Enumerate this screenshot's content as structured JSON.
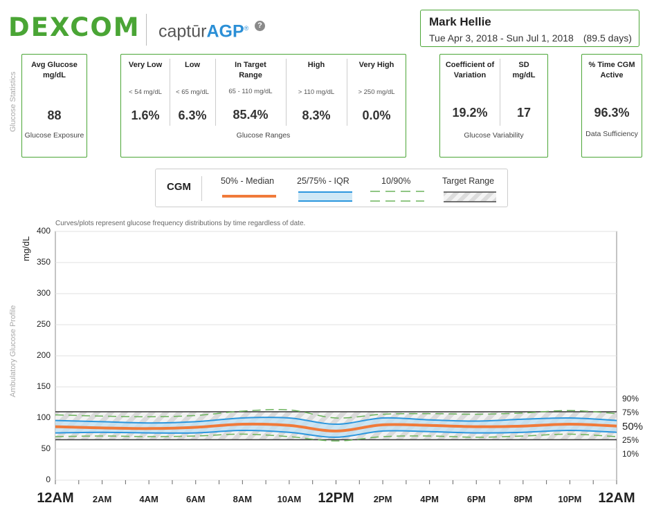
{
  "header": {
    "brand": "DEXCOM",
    "product_prefix": "captūr",
    "product_suffix": "AGP",
    "registered": "®",
    "help_icon": "?",
    "patient_name": "Mark Hellie",
    "date_range": "Tue Apr 3, 2018 - Sun Jul 1, 2018",
    "days": "(89.5 days)"
  },
  "stats": {
    "section_label": "Glucose Statistics",
    "avg": {
      "title": "Avg Glucose mg/dL",
      "value": "88",
      "caption": "Glucose Exposure"
    },
    "ranges": {
      "caption": "Glucose Ranges",
      "items": [
        {
          "title": "Very Low",
          "sub": "< 54 mg/dL",
          "value": "1.6%"
        },
        {
          "title": "Low",
          "sub": "< 65 mg/dL",
          "value": "6.3%"
        },
        {
          "title": "In Target Range",
          "sub": "65 - 110 mg/dL",
          "value": "85.4%"
        },
        {
          "title": "High",
          "sub": "> 110 mg/dL",
          "value": "8.3%"
        },
        {
          "title": "Very High",
          "sub": "> 250 mg/dL",
          "value": "0.0%"
        }
      ]
    },
    "variability": {
      "caption": "Glucose Variability",
      "cv": {
        "title": "Coefficient of Variation",
        "value": "19.2%"
      },
      "sd": {
        "title": "SD mg/dL",
        "value": "17"
      }
    },
    "active": {
      "title": "% Time CGM Active",
      "value": "96.3%",
      "caption": "Data Sufficiency"
    }
  },
  "legend": {
    "title": "CGM",
    "median": "50% - Median",
    "iqr": "25/75% - IQR",
    "p10_90": "10/90%",
    "target": "Target Range"
  },
  "chart": {
    "section_label": "Ambulatory Glucose Profile",
    "note": "Curves/plots represent glucose frequency distributions by time regardless of date.",
    "ylabel": "mg/dL",
    "y_ticks": [
      "400",
      "350",
      "300",
      "250",
      "200",
      "150",
      "100",
      "50",
      "0"
    ],
    "x_ticks": [
      "12AM",
      "2AM",
      "4AM",
      "6AM",
      "8AM",
      "10AM",
      "12PM",
      "2PM",
      "4PM",
      "6PM",
      "8PM",
      "10PM",
      "12AM"
    ],
    "pct_labels": [
      "90%",
      "75%",
      "50%",
      "25%",
      "10%"
    ]
  },
  "chart_data": {
    "type": "line",
    "ylabel": "mg/dL",
    "ylim": [
      0,
      400
    ],
    "target_range": [
      65,
      110
    ],
    "x": [
      "12AM",
      "2AM",
      "4AM",
      "6AM",
      "8AM",
      "10AM",
      "12PM",
      "2PM",
      "4PM",
      "6PM",
      "8PM",
      "10PM",
      "12AM"
    ],
    "series": [
      {
        "name": "90%",
        "values": [
          105,
          103,
          102,
          104,
          111,
          113,
          100,
          106,
          107,
          106,
          108,
          112,
          107
        ]
      },
      {
        "name": "75%",
        "values": [
          96,
          94,
          92,
          94,
          100,
          100,
          90,
          100,
          97,
          95,
          98,
          100,
          96
        ]
      },
      {
        "name": "50%",
        "values": [
          86,
          84,
          83,
          85,
          90,
          88,
          79,
          89,
          88,
          86,
          87,
          90,
          87
        ]
      },
      {
        "name": "25%",
        "values": [
          76,
          77,
          76,
          76,
          80,
          77,
          69,
          79,
          78,
          76,
          77,
          80,
          77
        ]
      },
      {
        "name": "10%",
        "values": [
          70,
          71,
          70,
          71,
          74,
          70,
          63,
          70,
          71,
          69,
          71,
          74,
          70
        ]
      }
    ],
    "grid": true
  }
}
